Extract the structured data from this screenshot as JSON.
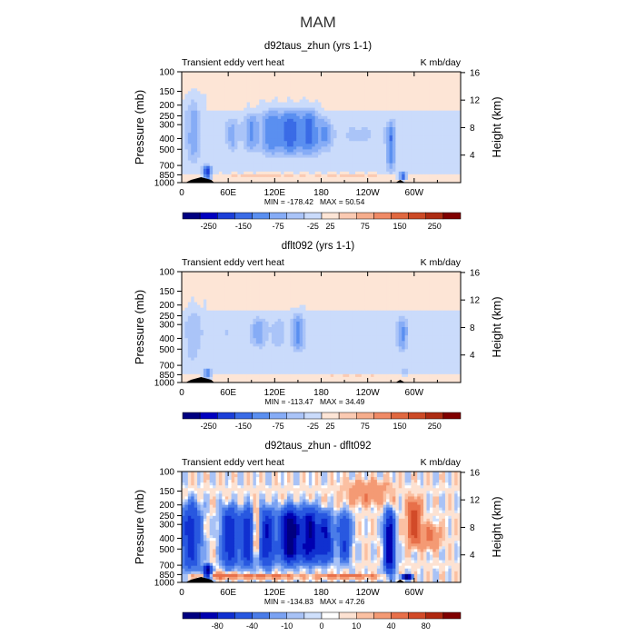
{
  "figure": {
    "title": "MAM"
  },
  "common": {
    "left_label": "Transient eddy vert heat",
    "right_label": "K mb/day",
    "ylabel": "Pressure (mb)",
    "ylabel_right": "Height (km)"
  },
  "panels": [
    {
      "title": "d92taus_zhun (yrs 1-1)",
      "min_label": "MIN = -178.42",
      "max_label": "MAX =  50.54"
    },
    {
      "title": "dflt092 (yrs 1-1)",
      "min_label": "MIN = -113.47",
      "max_label": "MAX =  34.49"
    },
    {
      "title": "d92taus_zhun - dflt092",
      "min_label": "MIN = -134.83",
      "max_label": "MAX =  47.26"
    }
  ],
  "chart_data": [
    {
      "type": "heatmap",
      "title": "d92taus_zhun (yrs 1-1)",
      "xlabel": "",
      "ylabel": "Pressure (mb)",
      "x_ticks": [
        "0",
        "60E",
        "120E",
        "180",
        "120W",
        "60W"
      ],
      "x_tick_values": [
        0,
        60,
        120,
        180,
        240,
        300
      ],
      "xlim": [
        0,
        360
      ],
      "y_ticks": [
        "100",
        "150",
        "200",
        "250",
        "300",
        "400",
        "500",
        "700",
        "850",
        "1000"
      ],
      "y_tick_values": [
        100,
        150,
        200,
        250,
        300,
        400,
        500,
        700,
        850,
        1000
      ],
      "ylim": [
        1000,
        100
      ],
      "y2_ticks": [
        "4",
        "8",
        "12",
        "16"
      ],
      "y2_tick_values": [
        4,
        8,
        12,
        16
      ],
      "y2label": "Height (km)",
      "min": -178.42,
      "max": 50.54,
      "colorbar_labels": [
        "-250",
        "-150",
        "-75",
        "-25",
        "25",
        "75",
        "150",
        "250"
      ],
      "features": [
        {
          "lon": 15,
          "width": 10,
          "p_top": 180,
          "p_bot": 650,
          "value": -60
        },
        {
          "lon": 33,
          "width": 5,
          "p_top": 700,
          "p_bot": 930,
          "value": -170
        },
        {
          "lon": 65,
          "width": 8,
          "p_top": 260,
          "p_bot": 520,
          "value": -55
        },
        {
          "lon": 90,
          "width": 10,
          "p_top": 240,
          "p_bot": 520,
          "value": -75
        },
        {
          "lon": 115,
          "width": 12,
          "p_top": 220,
          "p_bot": 560,
          "value": -90
        },
        {
          "lon": 140,
          "width": 14,
          "p_top": 220,
          "p_bot": 560,
          "value": -110
        },
        {
          "lon": 165,
          "width": 12,
          "p_top": 220,
          "p_bot": 560,
          "value": -100
        },
        {
          "lon": 185,
          "width": 9,
          "p_top": 260,
          "p_bot": 520,
          "value": -60
        },
        {
          "lon": 270,
          "width": 6,
          "p_top": 280,
          "p_bot": 780,
          "value": -90
        },
        {
          "lon": 285,
          "width": 5,
          "p_top": 800,
          "p_bot": 950,
          "value": -130
        },
        {
          "lon": 228,
          "width": 40,
          "p_top": 300,
          "p_bot": 450,
          "value": -25
        },
        {
          "lon": 100,
          "width": 60,
          "p_top": 820,
          "p_bot": 900,
          "value": 20
        },
        {
          "lon": 220,
          "width": 60,
          "p_top": 820,
          "p_bot": 900,
          "value": 18
        }
      ]
    },
    {
      "type": "heatmap",
      "title": "dflt092 (yrs 1-1)",
      "xlabel": "",
      "ylabel": "Pressure (mb)",
      "x_ticks": [
        "0",
        "60E",
        "120E",
        "180",
        "120W",
        "60W"
      ],
      "x_tick_values": [
        0,
        60,
        120,
        180,
        240,
        300
      ],
      "xlim": [
        0,
        360
      ],
      "y_ticks": [
        "100",
        "150",
        "200",
        "250",
        "300",
        "400",
        "500",
        "700",
        "850",
        "1000"
      ],
      "y_tick_values": [
        100,
        150,
        200,
        250,
        300,
        400,
        500,
        700,
        850,
        1000
      ],
      "ylim": [
        1000,
        100
      ],
      "y2_ticks": [
        "4",
        "8",
        "12",
        "16"
      ],
      "y2_tick_values": [
        4,
        8,
        12,
        16
      ],
      "y2label": "Height (km)",
      "min": -113.47,
      "max": 34.49,
      "colorbar_labels": [
        "-250",
        "-150",
        "-75",
        "-25",
        "25",
        "75",
        "150",
        "250"
      ],
      "features": [
        {
          "lon": 15,
          "width": 12,
          "p_top": 220,
          "p_bot": 650,
          "value": -35
        },
        {
          "lon": 33,
          "width": 5,
          "p_top": 750,
          "p_bot": 930,
          "value": -100
        },
        {
          "lon": 100,
          "width": 10,
          "p_top": 260,
          "p_bot": 480,
          "value": -60
        },
        {
          "lon": 125,
          "width": 9,
          "p_top": 270,
          "p_bot": 470,
          "value": -45
        },
        {
          "lon": 150,
          "width": 8,
          "p_top": 240,
          "p_bot": 520,
          "value": -80
        },
        {
          "lon": 285,
          "width": 7,
          "p_top": 260,
          "p_bot": 520,
          "value": -75
        },
        {
          "lon": 288,
          "width": 5,
          "p_top": 720,
          "p_bot": 900,
          "value": -40
        },
        {
          "lon": 60,
          "width": 30,
          "p_top": 300,
          "p_bot": 450,
          "value": -20
        },
        {
          "lon": 220,
          "width": 60,
          "p_top": 840,
          "p_bot": 900,
          "value": 15
        }
      ]
    },
    {
      "type": "heatmap",
      "title": "d92taus_zhun - dflt092",
      "xlabel": "",
      "ylabel": "Pressure (mb)",
      "x_ticks": [
        "0",
        "60E",
        "120E",
        "180",
        "120W",
        "60W"
      ],
      "x_tick_values": [
        0,
        60,
        120,
        180,
        240,
        300
      ],
      "xlim": [
        0,
        360
      ],
      "y_ticks": [
        "100",
        "150",
        "200",
        "250",
        "300",
        "400",
        "500",
        "700",
        "850",
        "1000"
      ],
      "y_tick_values": [
        100,
        150,
        200,
        250,
        300,
        400,
        500,
        700,
        850,
        1000
      ],
      "ylim": [
        1000,
        100
      ],
      "y2_ticks": [
        "4",
        "8",
        "12",
        "16"
      ],
      "y2_tick_values": [
        4,
        8,
        12,
        16
      ],
      "y2label": "Height (km)",
      "min": -134.83,
      "max": 47.26,
      "colorbar_labels": [
        "-80",
        "-40",
        "-10",
        "0",
        "10",
        "40",
        "80"
      ],
      "features": [
        {
          "lon": 12,
          "width": 12,
          "p_top": 200,
          "p_bot": 750,
          "value": -50
        },
        {
          "lon": 33,
          "width": 5,
          "p_top": 700,
          "p_bot": 930,
          "value": -90
        },
        {
          "lon": 62,
          "width": 10,
          "p_top": 220,
          "p_bot": 700,
          "value": -60
        },
        {
          "lon": 85,
          "width": 9,
          "p_top": 220,
          "p_bot": 700,
          "value": -55
        },
        {
          "lon": 110,
          "width": 9,
          "p_top": 220,
          "p_bot": 700,
          "value": -60
        },
        {
          "lon": 140,
          "width": 12,
          "p_top": 220,
          "p_bot": 650,
          "value": -100
        },
        {
          "lon": 165,
          "width": 10,
          "p_top": 220,
          "p_bot": 650,
          "value": -80
        },
        {
          "lon": 185,
          "width": 9,
          "p_top": 240,
          "p_bot": 650,
          "value": -60
        },
        {
          "lon": 210,
          "width": 8,
          "p_top": 240,
          "p_bot": 650,
          "value": -40
        },
        {
          "lon": 268,
          "width": 6,
          "p_top": 240,
          "p_bot": 820,
          "value": -80
        },
        {
          "lon": 300,
          "width": 8,
          "p_top": 180,
          "p_bot": 450,
          "value": 45
        },
        {
          "lon": 96,
          "width": 5,
          "p_top": 220,
          "p_bot": 560,
          "value": 30
        },
        {
          "lon": 45,
          "width": 30,
          "p_top": 820,
          "p_bot": 920,
          "value": 30
        },
        {
          "lon": 110,
          "width": 40,
          "p_top": 850,
          "p_bot": 920,
          "value": 25
        },
        {
          "lon": 215,
          "width": 40,
          "p_top": 840,
          "p_bot": 920,
          "value": 25
        },
        {
          "lon": 320,
          "width": 14,
          "p_top": 300,
          "p_bot": 500,
          "value": 20
        },
        {
          "lon": 240,
          "width": 30,
          "p_top": 120,
          "p_bot": 200,
          "value": 15
        },
        {
          "lon": 290,
          "width": 6,
          "p_top": 840,
          "p_bot": 950,
          "value": -100
        }
      ]
    }
  ],
  "colors": {
    "scale_a": [
      "#000080",
      "#0000c0",
      "#1c3fd8",
      "#3a6be6",
      "#5a8ff0",
      "#86acf6",
      "#aac4f8",
      "#cadbfb",
      "#fde5d6",
      "#fbcab2",
      "#f6ad8c",
      "#f08a66",
      "#e06840",
      "#cc4a26",
      "#ad2c13",
      "#800000"
    ],
    "scale_b": [
      "#000080",
      "#0000b0",
      "#1030d0",
      "#2858e0",
      "#4a7ce8",
      "#7aa2f2",
      "#a8c2f6",
      "#cfe0fc",
      "#ffffff",
      "#fde2d2",
      "#fbc0a2",
      "#f49a74",
      "#e8704a",
      "#d24a28",
      "#b02810",
      "#800000"
    ],
    "terrain": "#000000",
    "axis": "#000000"
  }
}
